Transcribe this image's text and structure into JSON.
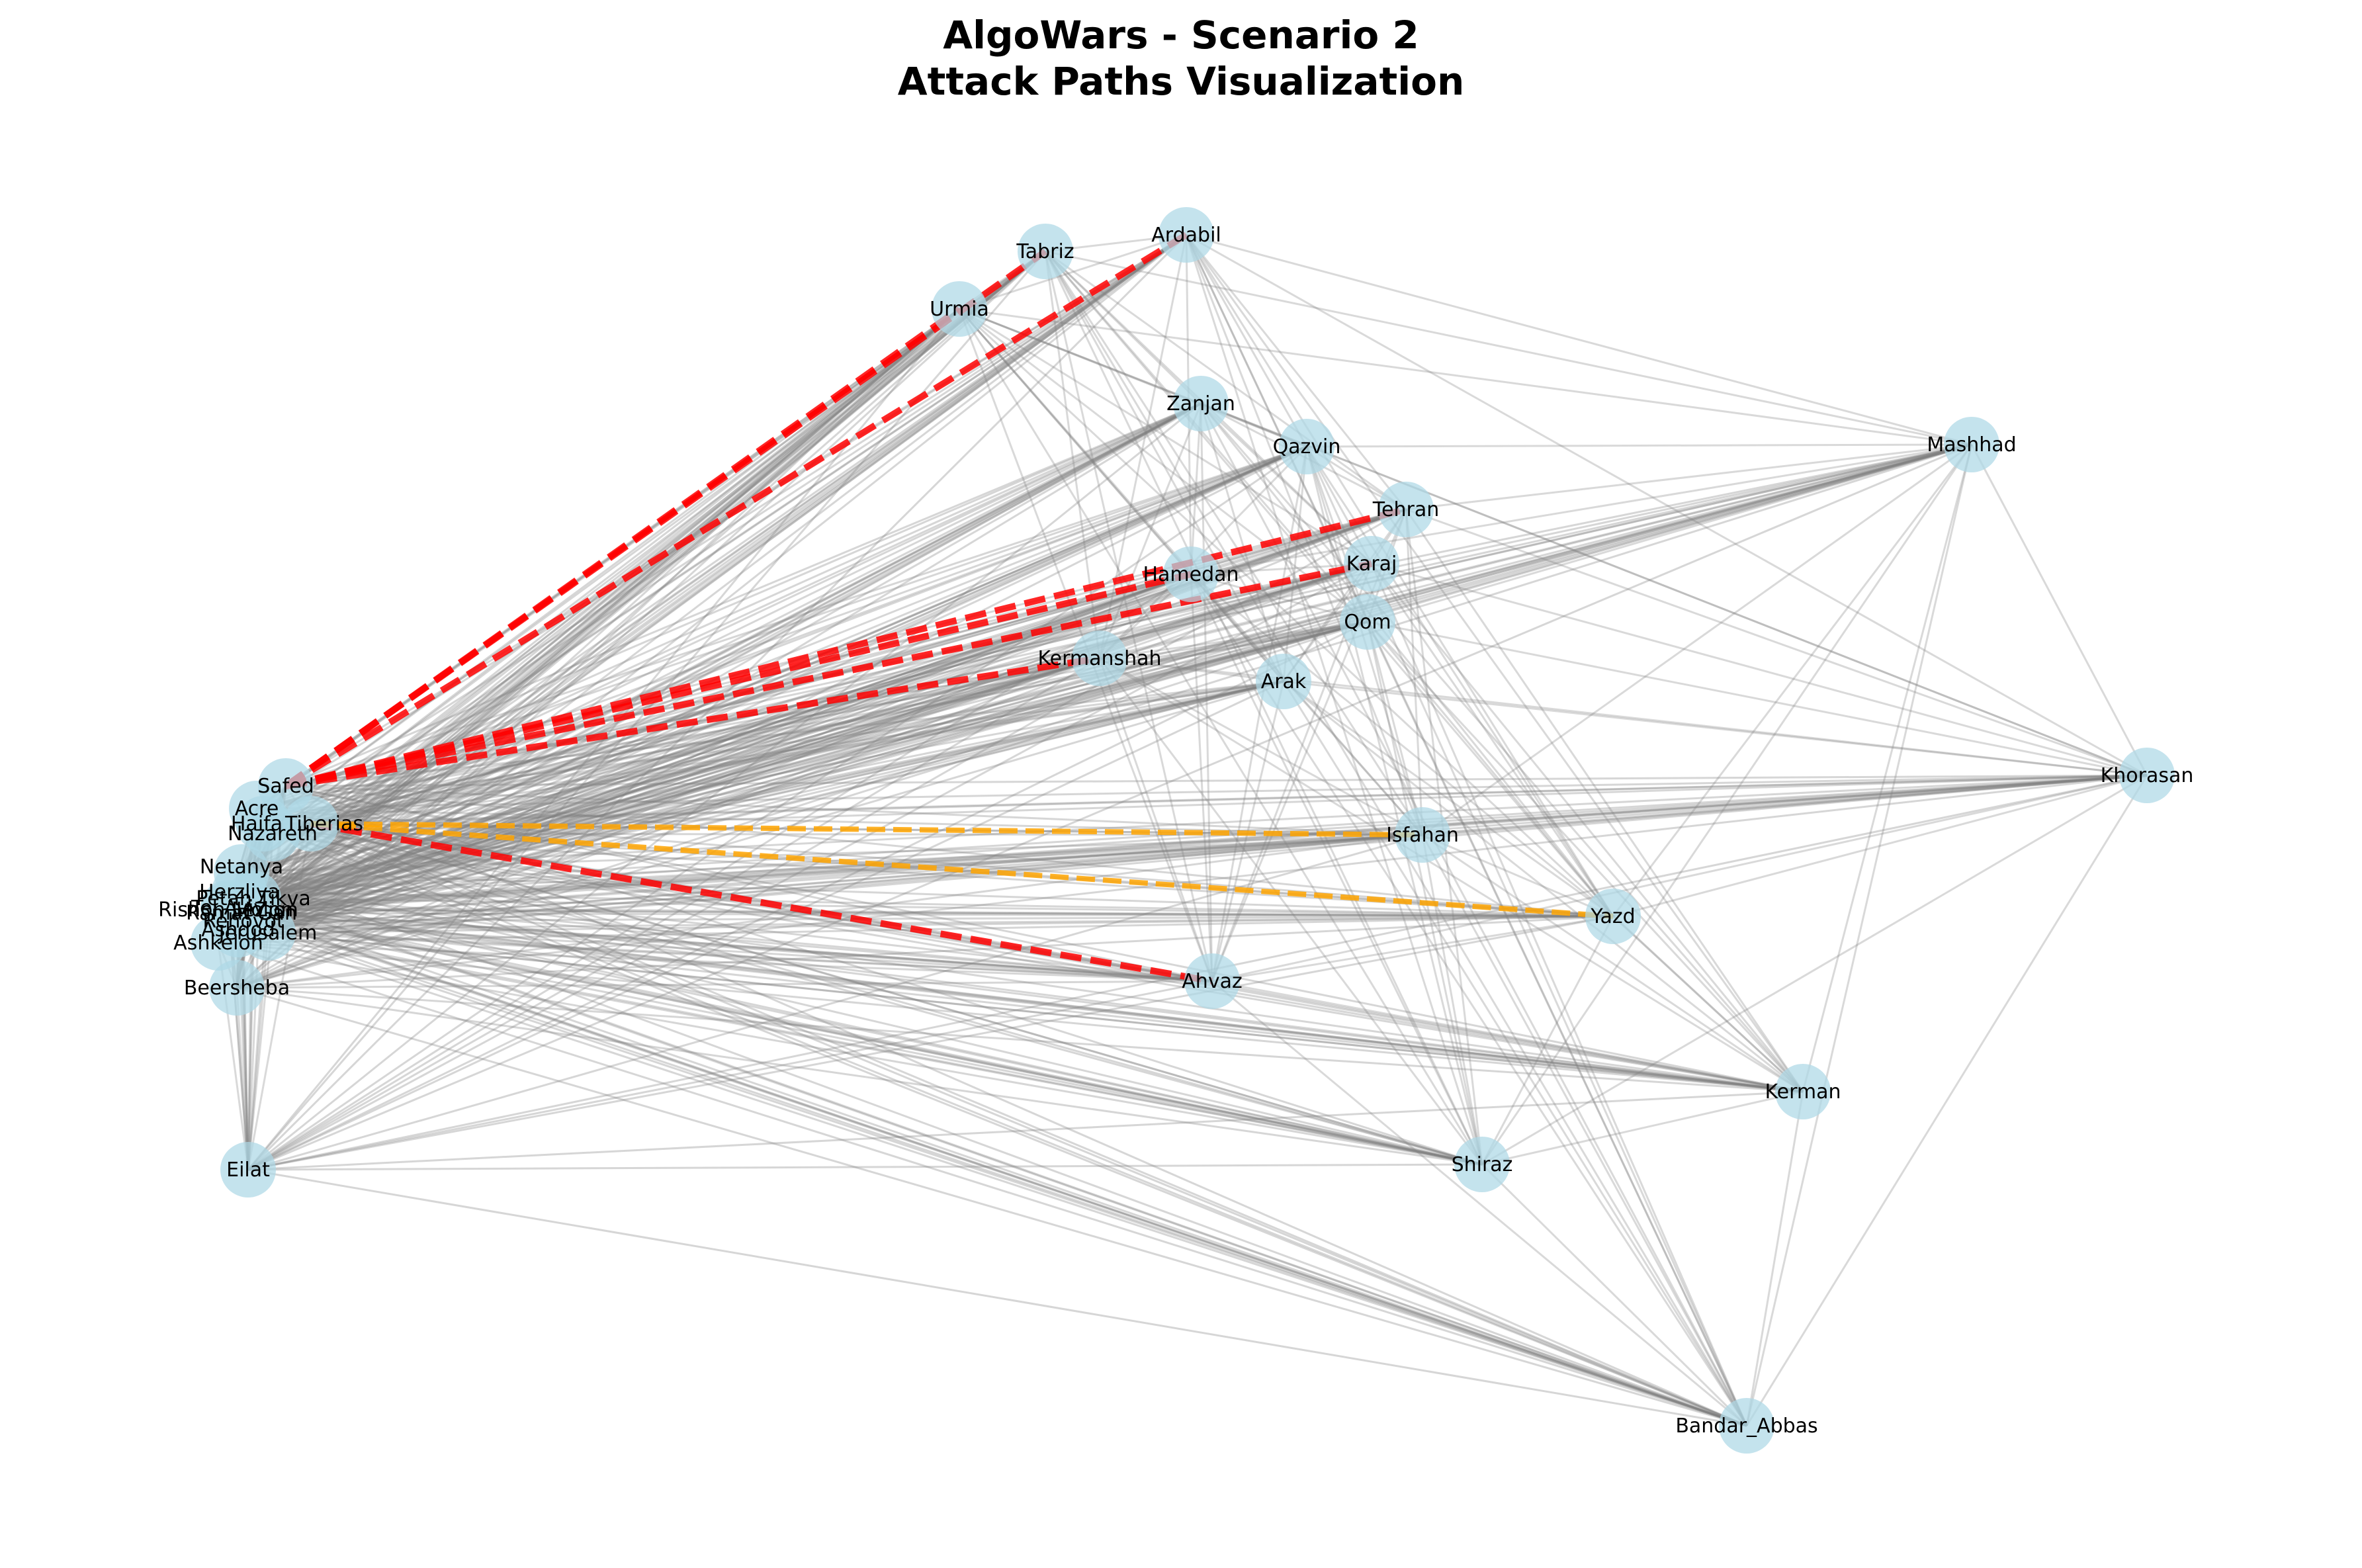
{
  "title": {
    "line1": "AlgoWars - Scenario 2",
    "line2": "Attack Paths Visualization"
  },
  "colors": {
    "node_fill": "#add8e6",
    "edge": "#808080",
    "attack_path": "#ff0000",
    "alt_path": "#ffa500"
  },
  "nodes": [
    {
      "name": "Tabriz"
    },
    {
      "name": "Ardabil"
    },
    {
      "name": "Urmia"
    },
    {
      "name": "Zanjan"
    },
    {
      "name": "Qazvin"
    },
    {
      "name": "Mashhad"
    },
    {
      "name": "Tehran"
    },
    {
      "name": "Karaj"
    },
    {
      "name": "Hamedan"
    },
    {
      "name": "Qom"
    },
    {
      "name": "Kermanshah"
    },
    {
      "name": "Arak"
    },
    {
      "name": "Khorasan"
    },
    {
      "name": "Isfahan"
    },
    {
      "name": "Yazd"
    },
    {
      "name": "Ahvaz"
    },
    {
      "name": "Kerman"
    },
    {
      "name": "Shiraz"
    },
    {
      "name": "Bandar_Abbas"
    },
    {
      "name": "Safed"
    },
    {
      "name": "Acre"
    },
    {
      "name": "Haifa"
    },
    {
      "name": "Tiberias"
    },
    {
      "name": "Nazareth"
    },
    {
      "name": "Netanya"
    },
    {
      "name": "Herzliya"
    },
    {
      "name": "Petah Tikva"
    },
    {
      "name": "Tel Aviv"
    },
    {
      "name": "Ramat Gan"
    },
    {
      "name": "Holon"
    },
    {
      "name": "Rishon LeZion"
    },
    {
      "name": "Rehovot"
    },
    {
      "name": "Ashdod"
    },
    {
      "name": "Jerusalem"
    },
    {
      "name": "Ashkelon"
    },
    {
      "name": "Beersheba"
    },
    {
      "name": "Eilat"
    }
  ],
  "attack_paths": [
    {
      "from": "Safed",
      "to": "Urmia"
    },
    {
      "from": "Safed",
      "to": "Tabriz"
    },
    {
      "from": "Safed",
      "to": "Ardabil"
    },
    {
      "from": "Safed",
      "to": "Tehran"
    },
    {
      "from": "Safed",
      "to": "Karaj"
    },
    {
      "from": "Safed",
      "to": "Hamedan"
    },
    {
      "from": "Safed",
      "to": "Kermanshah"
    },
    {
      "from": "Tiberias",
      "to": "Ahvaz"
    }
  ],
  "alt_paths": [
    {
      "from": "Tiberias",
      "to": "Isfahan"
    },
    {
      "from": "Tiberias",
      "to": "Yazd"
    }
  ]
}
